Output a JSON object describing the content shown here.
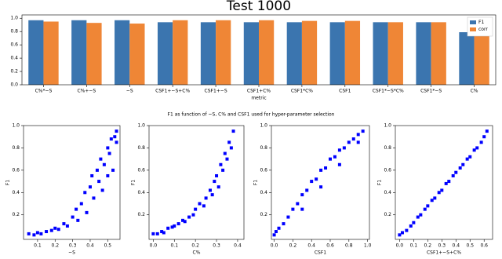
{
  "figure_title": "F1 as function of ~S, C% and CSF1 used for hyper-parameter selection",
  "chart_data": [
    {
      "type": "bar",
      "title": "Test 1000",
      "xlabel": "metric",
      "categories": [
        "C%*~S",
        "C%+~S",
        "~S",
        "CSF1+~S+C%",
        "CSF1+~S",
        "CSF1+C%",
        "CSF1*C%",
        "CSF1",
        "CSF1*~S*C%",
        "CSF1*~S",
        "C%"
      ],
      "series": [
        {
          "name": "F1",
          "color": "#3b75af",
          "values": [
            0.97,
            0.97,
            0.97,
            0.94,
            0.94,
            0.94,
            0.94,
            0.94,
            0.94,
            0.94,
            0.79
          ]
        },
        {
          "name": "corr",
          "color": "#ef8636",
          "values": [
            0.95,
            0.93,
            0.92,
            0.97,
            0.97,
            0.97,
            0.96,
            0.96,
            0.94,
            0.94,
            0.86
          ]
        }
      ],
      "ylim": [
        0,
        1.05
      ],
      "yticks": [
        {
          "value": 0,
          "label": "0.0"
        },
        0.2,
        0.4,
        0.6,
        0.8,
        {
          "value": 1,
          "label": "1.0"
        }
      ],
      "legend": "upper right"
    },
    {
      "type": "scatter",
      "xlabel": "~S",
      "ylabel": "F1",
      "color": "#0000ff",
      "x": [
        0.05,
        0.08,
        0.1,
        0.12,
        0.15,
        0.18,
        0.2,
        0.22,
        0.25,
        0.27,
        0.3,
        0.32,
        0.33,
        0.35,
        0.37,
        0.38,
        0.4,
        0.41,
        0.42,
        0.44,
        0.45,
        0.46,
        0.47,
        0.48,
        0.5,
        0.5,
        0.51,
        0.52,
        0.53,
        0.54,
        0.55,
        0.55
      ],
      "values": [
        0.03,
        0.02,
        0.04,
        0.03,
        0.05,
        0.06,
        0.08,
        0.07,
        0.12,
        0.1,
        0.18,
        0.25,
        0.15,
        0.3,
        0.4,
        0.22,
        0.45,
        0.55,
        0.35,
        0.6,
        0.5,
        0.7,
        0.42,
        0.65,
        0.8,
        0.55,
        0.75,
        0.88,
        0.6,
        0.9,
        0.95,
        0.85
      ],
      "xlim": [
        0.02,
        0.57
      ],
      "xticks": [
        0.1,
        0.2,
        0.3,
        0.4,
        0.5
      ],
      "ylim": [
        -0.02,
        1.0
      ],
      "yticks": [
        0.2,
        0.4,
        0.6,
        0.8,
        {
          "value": 1,
          "label": "1.0"
        }
      ]
    },
    {
      "type": "scatter",
      "xlabel": "C%",
      "ylabel": "F1",
      "color": "#0000ff",
      "x": [
        0.0,
        0.02,
        0.04,
        0.05,
        0.07,
        0.09,
        0.1,
        0.12,
        0.14,
        0.15,
        0.17,
        0.19,
        0.2,
        0.22,
        0.24,
        0.25,
        0.27,
        0.28,
        0.29,
        0.3,
        0.31,
        0.32,
        0.33,
        0.34,
        0.35,
        0.36,
        0.37,
        0.38
      ],
      "values": [
        0.03,
        0.03,
        0.05,
        0.04,
        0.08,
        0.09,
        0.1,
        0.12,
        0.15,
        0.14,
        0.18,
        0.2,
        0.25,
        0.3,
        0.28,
        0.35,
        0.42,
        0.38,
        0.5,
        0.55,
        0.45,
        0.65,
        0.6,
        0.75,
        0.7,
        0.85,
        0.8,
        0.95
      ],
      "xlim": [
        -0.02,
        0.43
      ],
      "xticks": [
        {
          "value": 0,
          "label": "0.0"
        },
        0.1,
        0.2,
        0.3,
        0.4
      ],
      "ylim": [
        -0.02,
        1.0
      ],
      "yticks": [
        0.2,
        0.4,
        0.6,
        0.8,
        {
          "value": 1,
          "label": "1.0"
        }
      ]
    },
    {
      "type": "scatter",
      "xlabel": "CSF1",
      "ylabel": "F1",
      "color": "#0000ff",
      "x": [
        0.0,
        0.02,
        0.05,
        0.1,
        0.15,
        0.2,
        0.25,
        0.3,
        0.35,
        0.4,
        0.45,
        0.5,
        0.55,
        0.6,
        0.65,
        0.7,
        0.75,
        0.8,
        0.85,
        0.9,
        0.95,
        0.3,
        0.5,
        0.7,
        0.9
      ],
      "values": [
        0.02,
        0.05,
        0.08,
        0.12,
        0.18,
        0.25,
        0.3,
        0.38,
        0.42,
        0.5,
        0.52,
        0.6,
        0.62,
        0.7,
        0.72,
        0.78,
        0.8,
        0.85,
        0.88,
        0.92,
        0.95,
        0.25,
        0.45,
        0.65,
        0.85
      ],
      "xlim": [
        -0.03,
        1.02
      ],
      "xticks": [
        {
          "value": 0,
          "label": "0.0"
        },
        0.2,
        0.4,
        0.6,
        0.8,
        {
          "value": 1,
          "label": "1.0"
        }
      ],
      "ylim": [
        -0.02,
        1.0
      ],
      "yticks": [
        0.2,
        0.4,
        0.6,
        0.8,
        {
          "value": 1,
          "label": "1.0"
        }
      ]
    },
    {
      "type": "scatter",
      "xlabel": "CSF1+~S+C%",
      "ylabel": "F1",
      "color": "#0000ff",
      "x": [
        0.0,
        0.02,
        0.05,
        0.08,
        0.1,
        0.13,
        0.15,
        0.18,
        0.2,
        0.23,
        0.25,
        0.28,
        0.3,
        0.33,
        0.35,
        0.38,
        0.4,
        0.43,
        0.45,
        0.48,
        0.5,
        0.53,
        0.55,
        0.58,
        0.6,
        0.62
      ],
      "values": [
        0.02,
        0.04,
        0.06,
        0.1,
        0.13,
        0.18,
        0.2,
        0.25,
        0.28,
        0.33,
        0.35,
        0.4,
        0.42,
        0.48,
        0.5,
        0.55,
        0.58,
        0.62,
        0.65,
        0.7,
        0.72,
        0.78,
        0.8,
        0.85,
        0.9,
        0.95
      ],
      "xlim": [
        -0.03,
        0.66
      ],
      "xticks": [
        {
          "value": 0,
          "label": "0.0"
        },
        0.1,
        0.2,
        0.3,
        0.4,
        0.5,
        0.6
      ],
      "ylim": [
        -0.02,
        1.0
      ],
      "yticks": [
        0.2,
        0.4,
        0.6,
        0.8,
        {
          "value": 1,
          "label": "1.0"
        }
      ]
    }
  ]
}
